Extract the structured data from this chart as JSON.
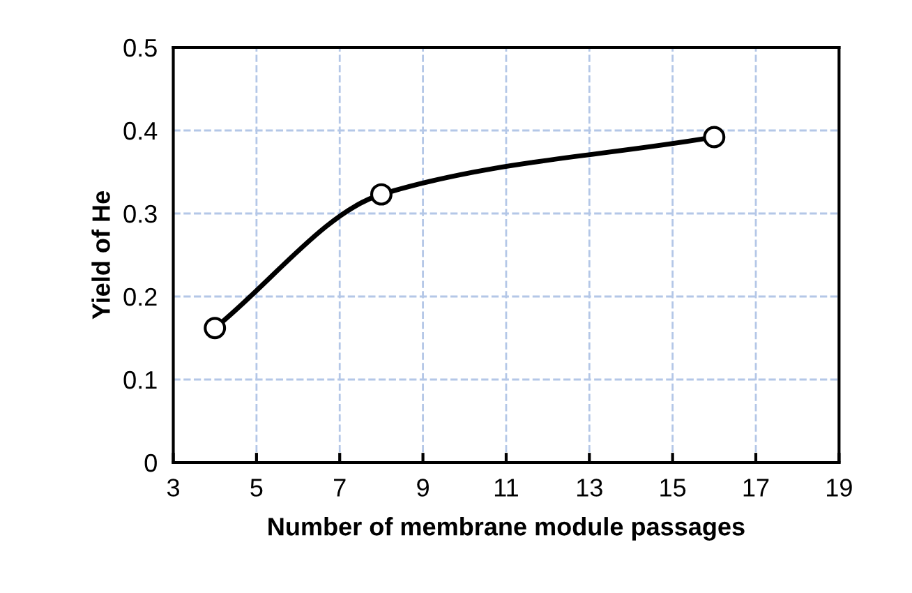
{
  "chart_data": {
    "type": "line",
    "xlabel": "Number of membrane module passages",
    "ylabel": "Yield of He",
    "x": [
      4,
      8,
      16
    ],
    "series": [
      {
        "color": "#000000",
        "values": [
          0.162,
          0.323,
          0.392
        ]
      }
    ],
    "xlim": [
      3,
      19
    ],
    "xticks": [
      3,
      5,
      7,
      9,
      11,
      13,
      15,
      17,
      19
    ],
    "ylim": [
      0,
      0.5
    ],
    "yticks": [
      0,
      0.1,
      0.2,
      0.3,
      0.4,
      0.5
    ],
    "grid": true,
    "marker": "circle",
    "line_style": "solid",
    "legend": false
  }
}
